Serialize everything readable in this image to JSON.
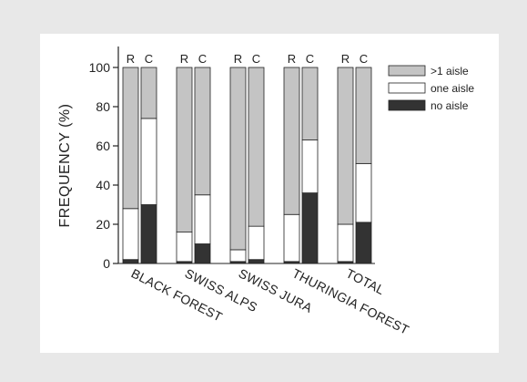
{
  "chart_data": {
    "type": "bar",
    "stacked": true,
    "ylabel": "FREQUENCY (%)",
    "ylim": [
      0,
      100
    ],
    "yticks": [
      0,
      20,
      40,
      60,
      80,
      100
    ],
    "categories": [
      "BLACK FOREST",
      "SWISS ALPS",
      "SWISS JURA",
      "THURINGIA FOREST",
      "TOTAL"
    ],
    "bar_labels": [
      "R",
      "C"
    ],
    "legend_position": "top-right",
    "series": [
      {
        "name": "no aisle",
        "color": "#333333",
        "R": [
          2,
          1,
          1,
          1,
          1
        ],
        "C": [
          30,
          10,
          2,
          36,
          21
        ]
      },
      {
        "name": "one aisle",
        "color": "#ffffff",
        "R": [
          26,
          15,
          6,
          24,
          19
        ],
        "C": [
          44,
          25,
          17,
          27,
          30
        ]
      },
      {
        "name": ">1 aisle",
        "color": "#c4c4c4",
        "R": [
          72,
          84,
          93,
          75,
          80
        ],
        "C": [
          26,
          65,
          81,
          37,
          49
        ]
      }
    ]
  }
}
